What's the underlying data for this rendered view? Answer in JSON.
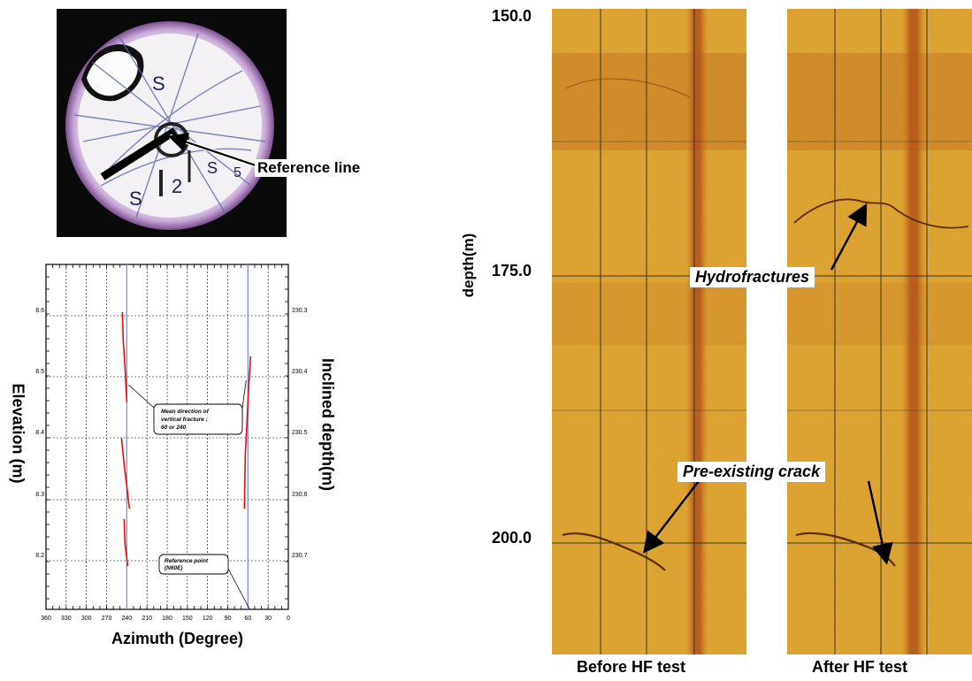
{
  "photo": {
    "label": "Reference line",
    "core_marks": [
      "S",
      "2",
      "S",
      "S",
      "5"
    ]
  },
  "azimuth_plot": {
    "x_label": "Azimuth (Degree)",
    "y_left_label": "Elevation (m)",
    "y_right_label": "Inclined depth(m)",
    "x_ticks": [
      "360",
      "330",
      "300",
      "270",
      "240",
      "210",
      "180",
      "150",
      "120",
      "90",
      "60",
      "30",
      "0"
    ],
    "y_left_ticks": [
      "58.6",
      "58.5",
      "58.4",
      "58.3",
      "58.2"
    ],
    "y_right_ticks": [
      "230.3",
      "230.4",
      "230.5",
      "230.6",
      "230.7"
    ],
    "callout_fracture": [
      "Mean direction of",
      "vertical fracture ;",
      "60 or 240"
    ],
    "callout_reference": [
      "Reference point",
      "(N60E)"
    ],
    "reference_lines_azimuth": [
      240,
      60
    ]
  },
  "televiewer": {
    "depth_label": "depth(m)",
    "depth_ticks": [
      "150.0",
      "175.0",
      "200.0"
    ],
    "panel_before": "Before HF test",
    "panel_after": "After HF test",
    "annotation_hydro": "Hydrofractures",
    "annotation_crack": "Pre-existing crack",
    "colors": {
      "background": "#e3a72e",
      "stripe": "#b4541a",
      "line": "#333333"
    }
  }
}
